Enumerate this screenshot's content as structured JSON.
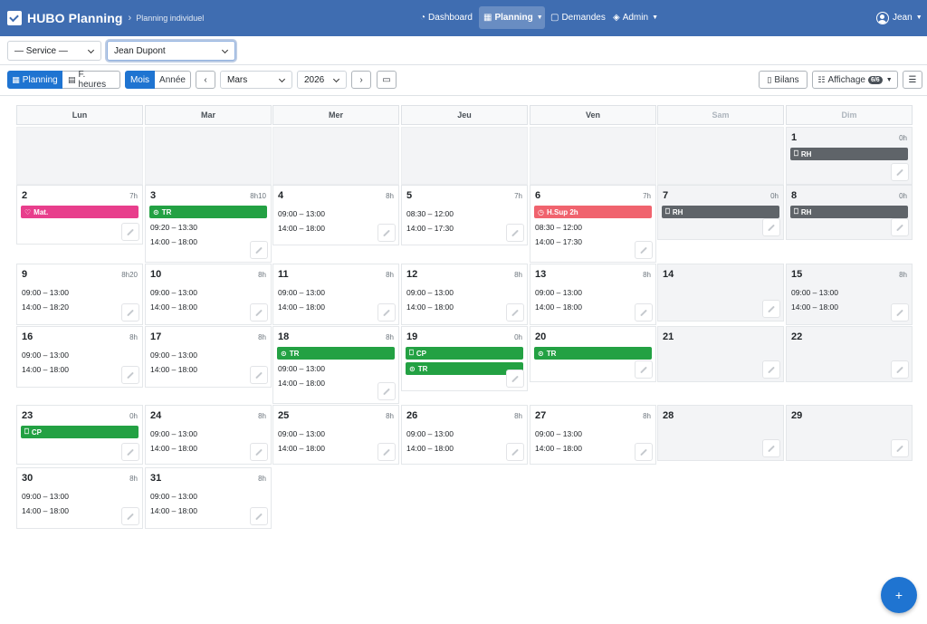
{
  "app": {
    "brand": "HUBO Planning",
    "breadcrumb": "Planning individuel",
    "nav": [
      {
        "label": "Dashboard",
        "icon": "dashboard-icon",
        "active": false,
        "caret": false
      },
      {
        "label": "Planning",
        "icon": "calendar-icon",
        "active": true,
        "caret": true
      },
      {
        "label": "Demandes",
        "icon": "clipboard-icon",
        "active": false,
        "caret": false
      },
      {
        "label": "Admin",
        "icon": "shield-icon",
        "active": false,
        "caret": true
      }
    ],
    "user": "Jean"
  },
  "filters": {
    "service": "— Service —",
    "employee": "Jean Dupont"
  },
  "toolbar": {
    "view_planning": "Planning",
    "view_hours": "F. heures",
    "range_month": "Mois",
    "range_year": "Année",
    "prev": "‹",
    "month": "Mars",
    "year": "2026",
    "next": "›",
    "bilans": "Bilans",
    "affichage": "Affichage",
    "affichage_count": "6/6"
  },
  "colors": {
    "navbar": "#3f6db1",
    "primary": "#1f74d1",
    "tag_gray": "#5f6469",
    "tag_green": "#23a143",
    "tag_pink": "#e83e8c",
    "tag_red": "#f0636e"
  },
  "calendar": {
    "weekdays": [
      "Lun",
      "Mar",
      "Mer",
      "Jeu",
      "Ven",
      "Sam",
      "Dim"
    ],
    "weeks": [
      [
        {
          "empty": true
        },
        {
          "empty": true
        },
        {
          "empty": true
        },
        {
          "empty": true
        },
        {
          "empty": true
        },
        {
          "empty": true
        },
        {
          "day": "1",
          "hours": "0h",
          "weekend": true,
          "tags": [
            {
              "label": "RH",
              "color": "gray",
              "icon": "⎕"
            }
          ],
          "slots": []
        }
      ],
      [
        {
          "day": "2",
          "hours": "7h",
          "tags": [
            {
              "label": "Mat.",
              "color": "pink",
              "icon": "♡"
            }
          ],
          "slots": []
        },
        {
          "day": "3",
          "hours": "8h10",
          "tags": [
            {
              "label": "TR",
              "color": "green",
              "icon": "⊙"
            }
          ],
          "slots": [
            "09:20 – 13:30",
            "14:00 – 18:00"
          ]
        },
        {
          "day": "4",
          "hours": "8h",
          "tags": [],
          "slots": [
            "09:00 – 13:00",
            "14:00 – 18:00"
          ]
        },
        {
          "day": "5",
          "hours": "7h",
          "tags": [],
          "slots": [
            "08:30 – 12:00",
            "14:00 – 17:30"
          ]
        },
        {
          "day": "6",
          "hours": "7h",
          "tags": [
            {
              "label": "H.Sup 2h",
              "color": "red",
              "icon": "◷"
            }
          ],
          "slots": [
            "08:30 – 12:00",
            "14:00 – 17:30"
          ]
        },
        {
          "day": "7",
          "hours": "0h",
          "weekend": true,
          "tags": [
            {
              "label": "RH",
              "color": "gray",
              "icon": "⎕"
            }
          ],
          "slots": []
        },
        {
          "day": "8",
          "hours": "0h",
          "weekend": true,
          "tags": [
            {
              "label": "RH",
              "color": "gray",
              "icon": "⎕"
            }
          ],
          "slots": []
        }
      ],
      [
        {
          "day": "9",
          "hours": "8h20",
          "tags": [],
          "slots": [
            "09:00 – 13:00",
            "14:00 – 18:20"
          ]
        },
        {
          "day": "10",
          "hours": "8h",
          "tags": [],
          "slots": [
            "09:00 – 13:00",
            "14:00 – 18:00"
          ]
        },
        {
          "day": "11",
          "hours": "8h",
          "tags": [],
          "slots": [
            "09:00 – 13:00",
            "14:00 – 18:00"
          ]
        },
        {
          "day": "12",
          "hours": "8h",
          "tags": [],
          "slots": [
            "09:00 – 13:00",
            "14:00 – 18:00"
          ]
        },
        {
          "day": "13",
          "hours": "8h",
          "tags": [],
          "slots": [
            "09:00 – 13:00",
            "14:00 – 18:00"
          ]
        },
        {
          "day": "14",
          "hours": "",
          "weekend": true,
          "tags": [],
          "slots": []
        },
        {
          "day": "15",
          "hours": "8h",
          "weekend": true,
          "tags": [],
          "slots": [
            "09:00 – 13:00",
            "14:00 – 18:00"
          ]
        }
      ],
      [
        {
          "day": "16",
          "hours": "8h",
          "tags": [],
          "slots": [
            "09:00 – 13:00",
            "14:00 – 18:00"
          ]
        },
        {
          "day": "17",
          "hours": "8h",
          "tags": [],
          "slots": [
            "09:00 – 13:00",
            "14:00 – 18:00"
          ]
        },
        {
          "day": "18",
          "hours": "8h",
          "tags": [
            {
              "label": "TR",
              "color": "green",
              "icon": "⊙"
            }
          ],
          "slots": [
            "09:00 – 13:00",
            "14:00 – 18:00"
          ]
        },
        {
          "day": "19",
          "hours": "0h",
          "tags": [
            {
              "label": "CP",
              "color": "green",
              "icon": "⎕"
            },
            {
              "label": "TR",
              "color": "green",
              "icon": "⊙"
            }
          ],
          "slots": []
        },
        {
          "day": "20",
          "hours": "",
          "tags": [
            {
              "label": "TR",
              "color": "green",
              "icon": "⊙"
            }
          ],
          "slots": []
        },
        {
          "day": "21",
          "hours": "",
          "weekend": true,
          "tags": [],
          "slots": []
        },
        {
          "day": "22",
          "hours": "",
          "weekend": true,
          "tags": [],
          "slots": []
        }
      ],
      [
        {
          "day": "23",
          "hours": "0h",
          "tags": [
            {
              "label": "CP",
              "color": "green",
              "icon": "⎕"
            }
          ],
          "slots": []
        },
        {
          "day": "24",
          "hours": "8h",
          "tags": [],
          "slots": [
            "09:00 – 13:00",
            "14:00 – 18:00"
          ]
        },
        {
          "day": "25",
          "hours": "8h",
          "tags": [],
          "slots": [
            "09:00 – 13:00",
            "14:00 – 18:00"
          ]
        },
        {
          "day": "26",
          "hours": "8h",
          "tags": [],
          "slots": [
            "09:00 – 13:00",
            "14:00 – 18:00"
          ]
        },
        {
          "day": "27",
          "hours": "8h",
          "tags": [],
          "slots": [
            "09:00 – 13:00",
            "14:00 – 18:00"
          ]
        },
        {
          "day": "28",
          "hours": "",
          "weekend": true,
          "tags": [],
          "slots": []
        },
        {
          "day": "29",
          "hours": "",
          "weekend": true,
          "tags": [],
          "slots": []
        }
      ],
      [
        {
          "day": "30",
          "hours": "8h",
          "tags": [],
          "slots": [
            "09:00 – 13:00",
            "14:00 – 18:00"
          ]
        },
        {
          "day": "31",
          "hours": "8h",
          "tags": [],
          "slots": [
            "09:00 – 13:00",
            "14:00 – 18:00"
          ]
        }
      ]
    ]
  },
  "fab": "+"
}
